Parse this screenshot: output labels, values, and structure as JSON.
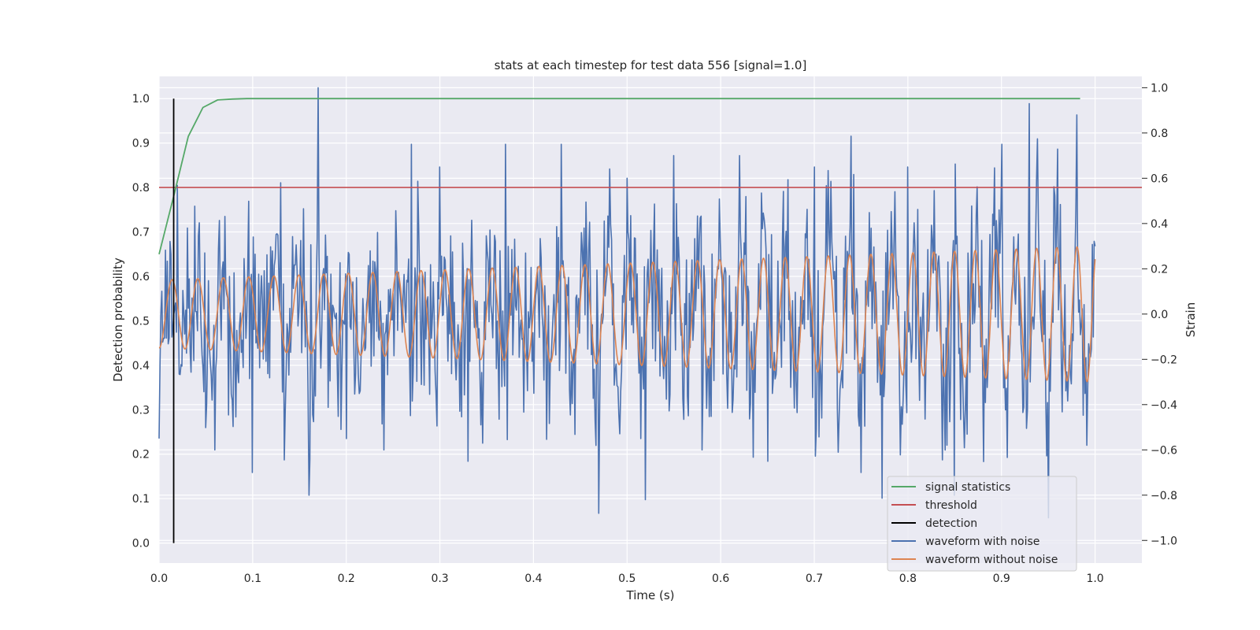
{
  "chart_data": {
    "type": "line",
    "title": "stats at each timestep for test data 556 [signal=1.0]",
    "xlabel": "Time (s)",
    "ylabel": "Detection probability",
    "y2label": "Strain",
    "xlim": [
      0.0,
      1.05
    ],
    "ylim": [
      -0.045,
      1.05
    ],
    "y2lim": [
      -1.1,
      1.05
    ],
    "x_ticks": [
      "0.0",
      "0.1",
      "0.2",
      "0.3",
      "0.4",
      "0.5",
      "0.6",
      "0.7",
      "0.8",
      "0.9",
      "1.0"
    ],
    "y_ticks": [
      "0.0",
      "0.1",
      "0.2",
      "0.3",
      "0.4",
      "0.5",
      "0.6",
      "0.7",
      "0.8",
      "0.9",
      "1.0"
    ],
    "y2_ticks": [
      "−1.0",
      "−0.8",
      "−0.6",
      "−0.4",
      "−0.2",
      "0.0",
      "0.2",
      "0.4",
      "0.6",
      "0.8",
      "1.0"
    ],
    "grid": true,
    "legend_position": "lower-right",
    "colors": {
      "plot_bg": "#eaeaf2",
      "grid": "#ffffff",
      "signal_statistics": "#55a868",
      "threshold": "#c44e52",
      "detection": "#000000",
      "waveform_with_noise": "#4c72b0",
      "waveform_without_noise": "#dd8452"
    },
    "series": [
      {
        "name": "signal statistics",
        "axis": "left",
        "x": [
          0.0,
          0.0156,
          0.0312,
          0.0469,
          0.0625,
          0.0781,
          0.0938,
          0.125,
          0.25,
          0.5,
          0.75,
          0.984
        ],
        "y": [
          0.65,
          0.78,
          0.915,
          0.98,
          0.997,
          0.999,
          1.0,
          1.0,
          1.0,
          1.0,
          1.0,
          1.0
        ]
      },
      {
        "name": "threshold",
        "axis": "left",
        "x": [
          0.0,
          1.05
        ],
        "y": [
          0.8,
          0.8
        ]
      },
      {
        "name": "detection",
        "axis": "left",
        "x": [
          0.0156,
          0.0156
        ],
        "y": [
          0.0,
          1.0
        ]
      },
      {
        "name": "waveform with noise",
        "axis": "right",
        "x": [
          0.0,
          0.03,
          0.06,
          0.1,
          0.13,
          0.16,
          0.17,
          0.2,
          0.24,
          0.27,
          0.3,
          0.33,
          0.37,
          0.4,
          0.43,
          0.47,
          0.5,
          0.52,
          0.55,
          0.58,
          0.62,
          0.65,
          0.7,
          0.75,
          0.8,
          0.85,
          0.9,
          0.93,
          0.95,
          0.98,
          1.0
        ],
        "y": [
          -0.55,
          0.38,
          -0.6,
          -0.7,
          0.58,
          -0.8,
          1.0,
          -0.55,
          -0.6,
          0.75,
          0.65,
          -0.65,
          0.75,
          -0.35,
          0.75,
          -0.88,
          0.6,
          -0.82,
          0.7,
          -0.6,
          0.7,
          -0.65,
          0.65,
          -0.7,
          0.65,
          -0.8,
          0.75,
          0.93,
          -0.9,
          0.88,
          0.3
        ]
      },
      {
        "name": "waveform without noise",
        "axis": "right",
        "amplitude_start": 0.15,
        "amplitude_end": 0.3,
        "cycles": 36,
        "x": [
          0.0,
          1.0
        ],
        "y": [
          -0.15,
          0.2
        ]
      }
    ]
  }
}
